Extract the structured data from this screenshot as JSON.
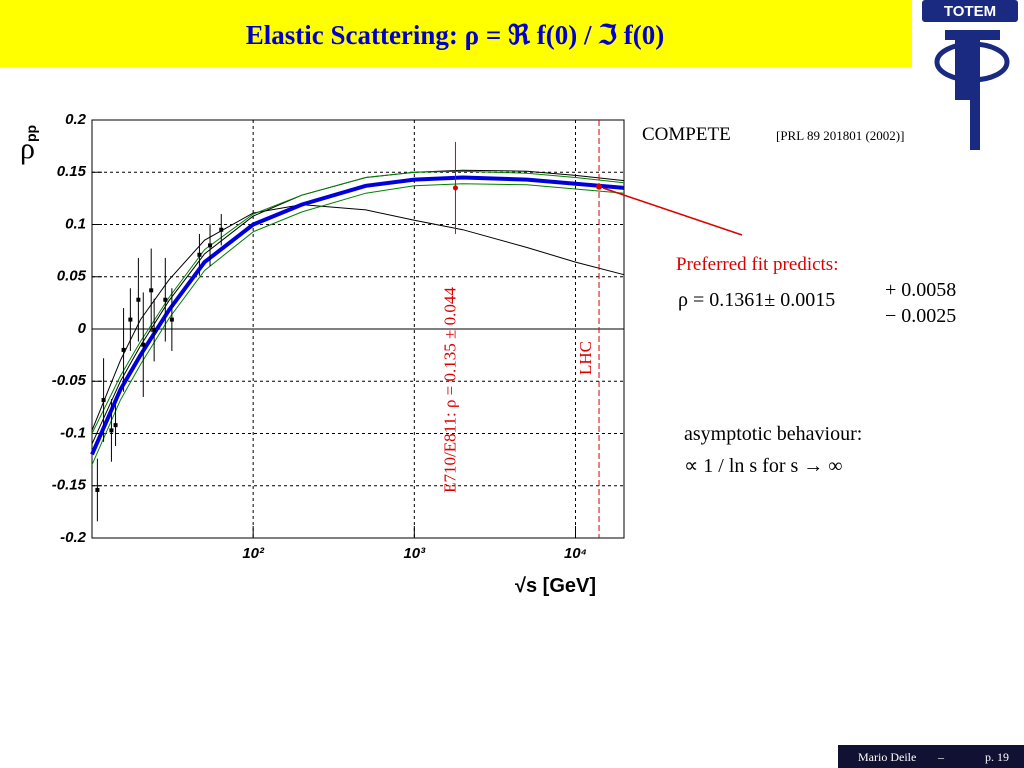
{
  "header": {
    "title": "Elastic Scattering: ρ = ℜ f(0) / ℑ f(0)",
    "logo": "TOTEM"
  },
  "chart_data": {
    "type": "line",
    "y_label": "ρ",
    "y_label_subscript": "pp",
    "x_label": "√s [GeV]",
    "log_x": true,
    "grid": true,
    "xlim": [
      10,
      20000
    ],
    "ylim": [
      -0.2,
      0.2
    ],
    "xticks": [
      {
        "value": 100,
        "label": "10²"
      },
      {
        "value": 1000,
        "label": "10³"
      },
      {
        "value": 10000,
        "label": "10⁴"
      }
    ],
    "yticks": [
      -0.2,
      -0.15,
      -0.1,
      -0.05,
      0,
      0.05,
      0.1,
      0.15,
      0.2
    ],
    "x": [
      10,
      15,
      20,
      30,
      50,
      100,
      200,
      500,
      1000,
      2000,
      5000,
      10000,
      20000
    ],
    "series": [
      {
        "color": "#000000",
        "width": 1,
        "values": [
          -0.097,
          -0.03,
          0.009,
          0.047,
          0.085,
          0.111,
          0.119,
          0.114,
          0.104,
          0.095,
          0.078,
          0.064,
          0.052
        ]
      },
      {
        "color": "#000000",
        "width": 1,
        "values": [
          -0.11,
          -0.05,
          -0.016,
          0.027,
          0.072,
          0.108,
          0.128,
          0.145,
          0.15,
          0.152,
          0.151,
          0.147,
          0.142
        ]
      },
      {
        "color": "#008000",
        "width": 1,
        "values": [
          -0.1,
          -0.045,
          -0.012,
          0.03,
          0.076,
          0.11,
          0.128,
          0.145,
          0.15,
          0.151,
          0.149,
          0.145,
          0.14
        ]
      },
      {
        "color": "#008000",
        "width": 1,
        "values": [
          -0.13,
          -0.068,
          -0.034,
          0.01,
          0.056,
          0.093,
          0.112,
          0.13,
          0.137,
          0.139,
          0.138,
          0.134,
          0.13
        ]
      },
      {
        "color": "#0000dd",
        "width": 4,
        "values": [
          -0.12,
          -0.058,
          -0.025,
          0.018,
          0.064,
          0.1,
          0.119,
          0.137,
          0.143,
          0.145,
          0.143,
          0.139,
          0.135
        ]
      }
    ],
    "points": {
      "color": "#000000",
      "x": [
        10.8,
        11.8,
        13.2,
        14.0,
        15.7,
        17.3,
        19.4,
        20.8,
        23.3,
        24.3,
        28.5,
        31.3,
        46.4,
        54,
        63.4
      ],
      "y": [
        -0.154,
        -0.068,
        -0.097,
        -0.092,
        -0.02,
        0.009,
        0.028,
        -0.015,
        0.037,
        -0.001,
        0.028,
        0.009,
        0.071,
        0.08,
        0.095
      ],
      "err": [
        0.03,
        0.04,
        0.03,
        0.02,
        0.04,
        0.03,
        0.04,
        0.05,
        0.04,
        0.03,
        0.04,
        0.03,
        0.02,
        0.02,
        0.015
      ]
    },
    "reference": {
      "label": "E710/E811: ρ = 0.135 ± 0.044",
      "x": 1800,
      "value": 0.135,
      "error": 0.044,
      "color": "#dd0000"
    },
    "lhc": {
      "label": "LHC",
      "x": 14000,
      "value": 0.1361,
      "color": "#dd0000"
    }
  },
  "annotations": {
    "compete": "COMPETE",
    "reference": "[PRL 89 201801 (2002)]",
    "predicts": "Preferred fit predicts:",
    "formula": "ρ = 0.1361± 0.0015",
    "upper": "+ 0.0058",
    "lower": "− 0.0025",
    "asymptotic": "asymptotic behaviour:",
    "behaviour": "∝ 1 / ln s  for  s → ∞"
  },
  "footer": {
    "author": "Mario Deile",
    "separator": "–",
    "page": "p. 19"
  }
}
